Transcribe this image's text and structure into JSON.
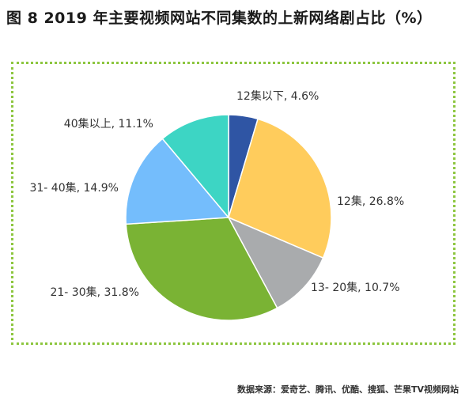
{
  "title": "图 8 2019 年主要视频网站不同集数的上新网络剧占比（%）",
  "source": "数据来源：爱奇艺、腾讯、优酷、搜狐、芒果TV视频网站",
  "chart_data": {
    "type": "pie",
    "title": "图 8 2019 年主要视频网站不同集数的上新网络剧占比（%）",
    "unit": "%",
    "slices": [
      {
        "name": "12集以下",
        "value": 4.6,
        "label": "12集以下, 4.6%",
        "color": "#2f55a4"
      },
      {
        "name": "12集",
        "value": 26.8,
        "label": "12集, 26.8%",
        "color": "#ffcc5c"
      },
      {
        "name": "13- 20集",
        "value": 10.7,
        "label": "13- 20集, 10.7%",
        "color": "#a9abad"
      },
      {
        "name": "21- 30集",
        "value": 31.8,
        "label": "21- 30集, 31.8%",
        "color": "#7ab334"
      },
      {
        "name": "31- 40集",
        "value": 14.9,
        "label": "31- 40集, 14.9%",
        "color": "#74bdfc"
      },
      {
        "name": "40集以上",
        "value": 11.1,
        "label": "40集以上, 11.1%",
        "color": "#3dd5c4"
      }
    ]
  }
}
